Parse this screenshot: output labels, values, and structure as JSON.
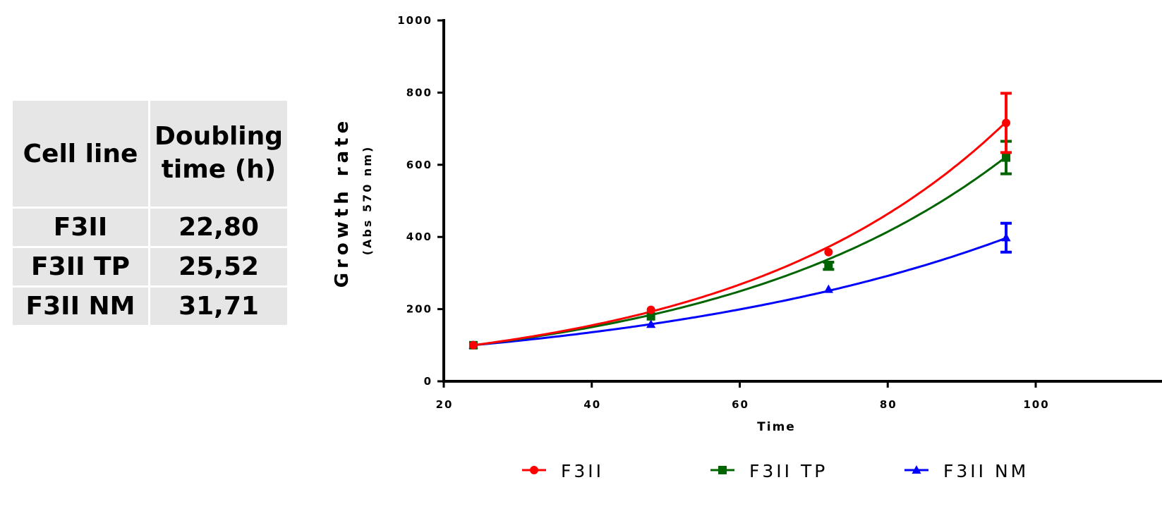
{
  "table": {
    "headers": [
      "Cell line",
      "Doubling\ntime (h)"
    ],
    "header_line1": "Doubling",
    "header_line2": "time (h)",
    "header_cell_line": "Cell line",
    "rows": [
      {
        "cell_line": "F3II",
        "doubling_time": "22,80"
      },
      {
        "cell_line": "F3II TP",
        "doubling_time": "25,52"
      },
      {
        "cell_line": "F3II NM",
        "doubling_time": "31,71"
      }
    ]
  },
  "chart_data": {
    "type": "scatter",
    "title": "",
    "xlabel": "Time",
    "ylabel": "Growth rate",
    "ylabel_sub": "(Abs 570 nm)",
    "xlim": [
      20,
      100
    ],
    "ylim": [
      0,
      1000
    ],
    "xticks": [
      20,
      40,
      60,
      80,
      100
    ],
    "yticks": [
      0,
      200,
      400,
      600,
      800,
      1000
    ],
    "grid": false,
    "legend_position": "bottom",
    "series": [
      {
        "name": "F3II",
        "color": "#ff0000",
        "marker": "circle",
        "x": [
          24,
          48,
          72,
          96
        ],
        "y": [
          100,
          198,
          358,
          716
        ],
        "error": [
          0,
          0,
          0,
          82
        ],
        "fit": {
          "y0": 100,
          "x0": 24,
          "doubling": 25.3
        }
      },
      {
        "name": "F3II TP",
        "color": "#006400",
        "marker": "square",
        "x": [
          24,
          48,
          72,
          96
        ],
        "y": [
          100,
          180,
          320,
          620
        ],
        "error": [
          0,
          0,
          10,
          45
        ],
        "fit": {
          "y0": 100,
          "x0": 24,
          "doubling": 27.3
        }
      },
      {
        "name": "F3II NM",
        "color": "#0000ff",
        "marker": "triangle",
        "x": [
          24,
          48,
          72,
          96
        ],
        "y": [
          100,
          158,
          255,
          398
        ],
        "error": [
          0,
          0,
          0,
          40
        ],
        "fit": {
          "y0": 100,
          "x0": 24,
          "doubling": 36.2
        }
      }
    ]
  }
}
